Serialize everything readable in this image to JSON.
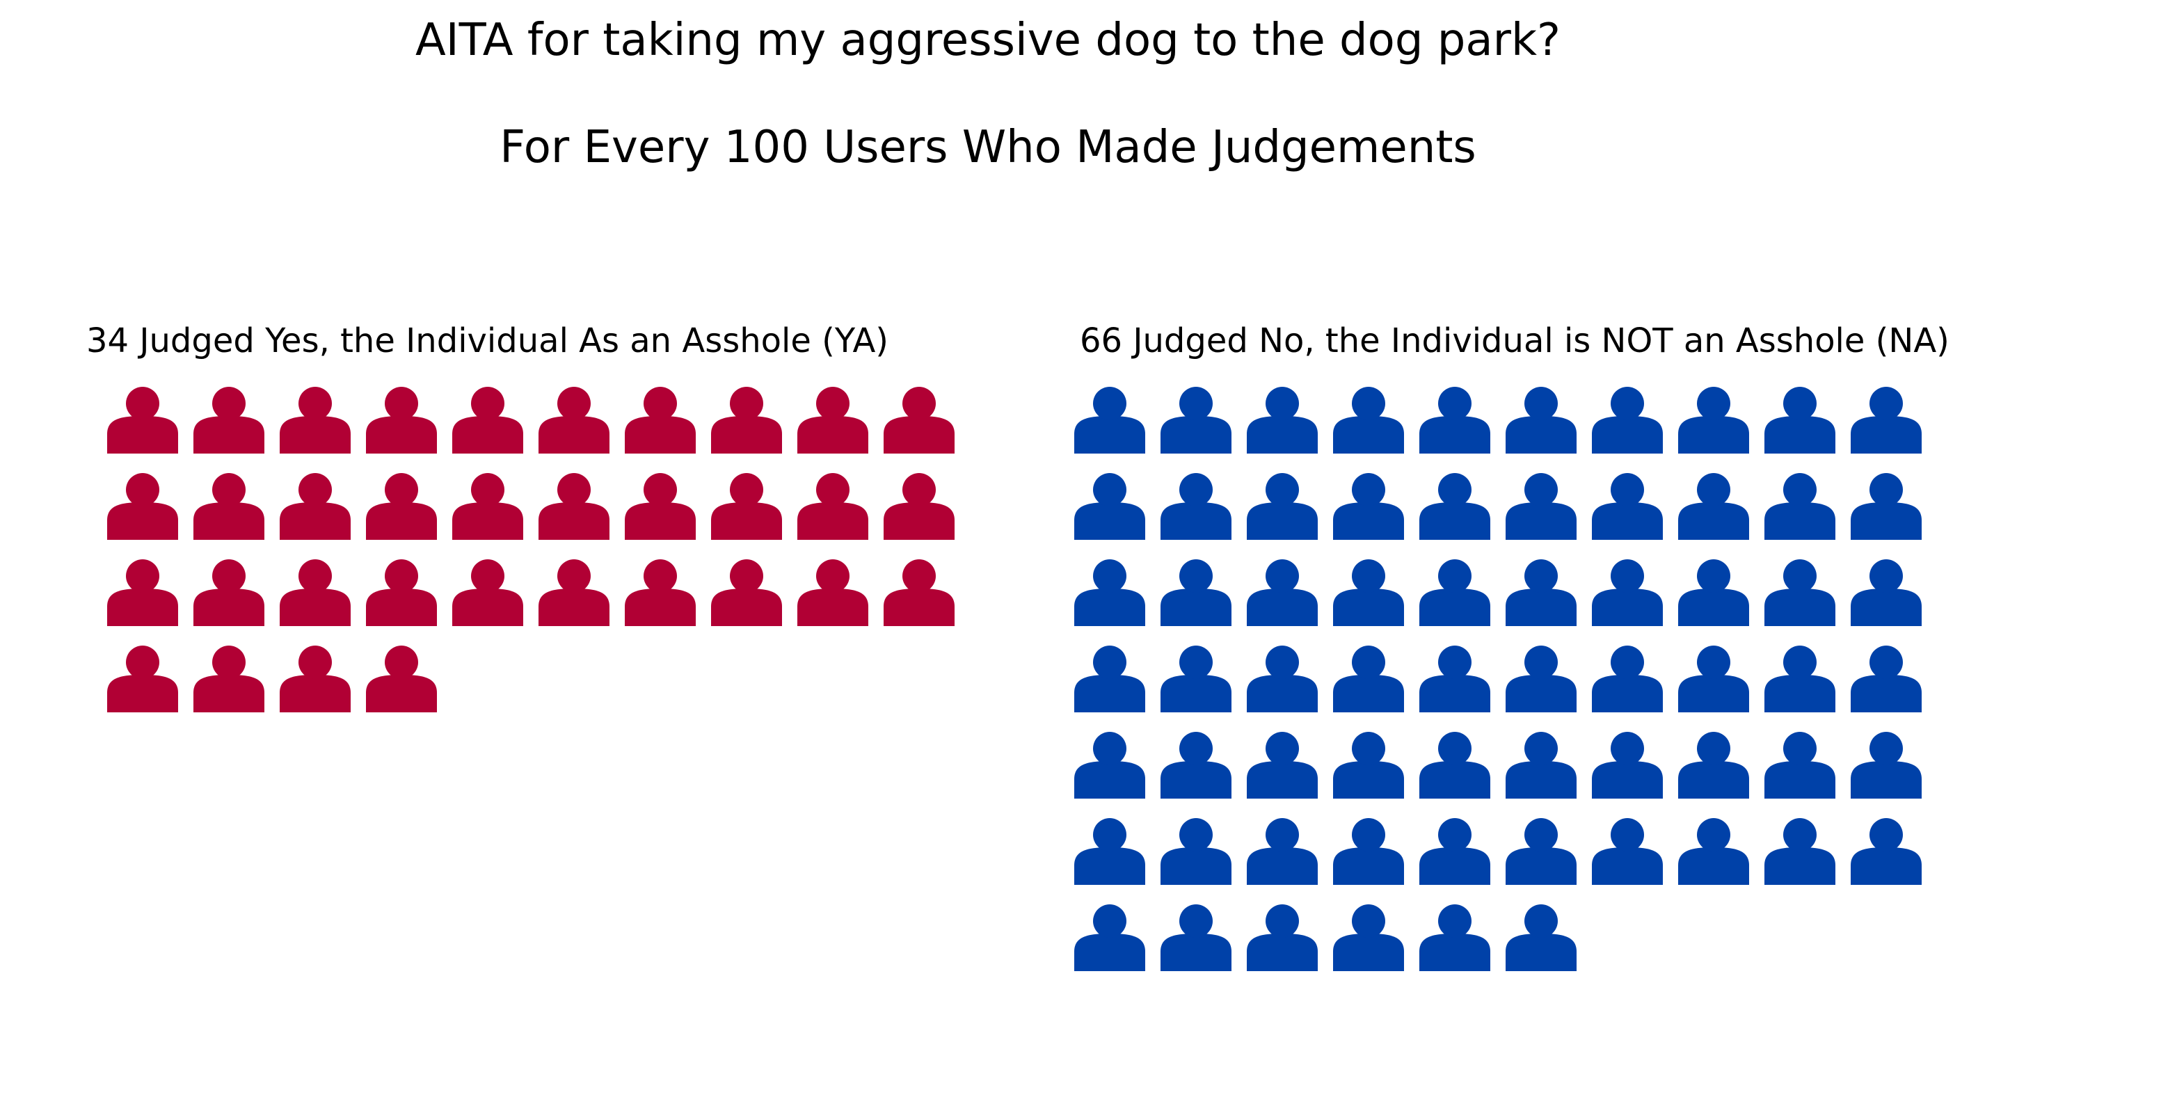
{
  "chart_data": {
    "type": "waffle",
    "title": "AITA for taking my aggressive dog to the dog park?",
    "subtitle": "For Every 100 Users Who Made Judgements",
    "icon": "person-icon",
    "columns": 10,
    "panels": [
      {
        "key": "YA",
        "label": "34 Judged Yes, the Individual As an Asshole (YA)",
        "count": 34,
        "color": "#b10034"
      },
      {
        "key": "NA",
        "label": "66 Judged No, the Individual is NOT an Asshole (NA)",
        "count": 66,
        "color": "#0041a8"
      }
    ]
  }
}
